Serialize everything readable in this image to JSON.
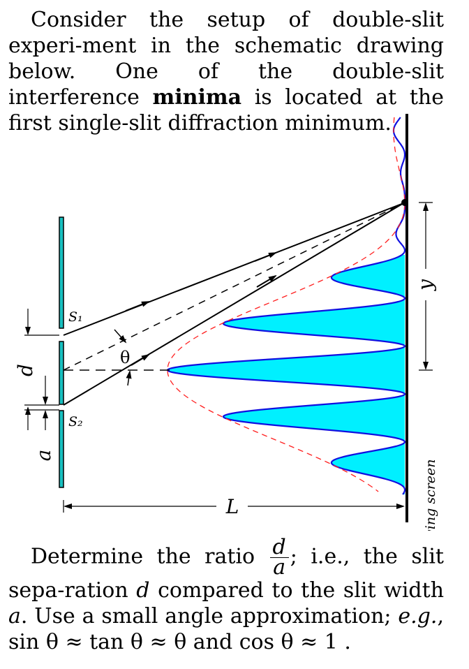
{
  "intro": {
    "text_before": "Consider the setup of double-slit experi-ment in the schematic drawing below. One of the double-slit interference ",
    "bold": "minima",
    "text_after": " is located at the first single-slit diffraction minimum."
  },
  "figure": {
    "labels": {
      "s1": "S₁",
      "s2": "S₂",
      "d": "d",
      "a": "a",
      "theta": "θ",
      "y": "y",
      "L": "L",
      "screen": "viewing screen"
    },
    "colors": {
      "fill": "#00f0ff",
      "curve": "#1010e0",
      "envelope": "#ff2020",
      "slit_fill": "#18c0c0",
      "ink": "#000000"
    }
  },
  "question": {
    "p1": "Determine the ratio ",
    "frac_num": "d",
    "frac_den": "a",
    "p2": "; i.e., the slit sepa-ration ",
    "var_d": "d",
    "p3": " compared to the slit width ",
    "var_a": "a",
    "p4": ".  Use a small angle approximation; ",
    "eg": "e.g.",
    "p5": ", sin θ ≈ tan θ ≈ θ and cos θ ≈ 1 ."
  }
}
